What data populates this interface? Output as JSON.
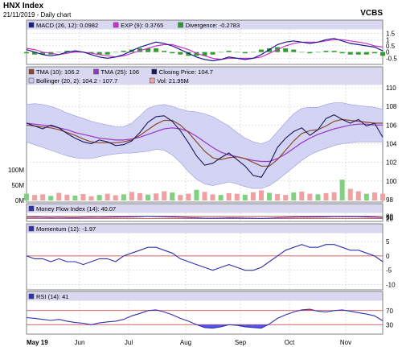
{
  "header": {
    "title": "HNX Index",
    "subtitle": "21/11/2019 - Daily chart",
    "brand": "VCBS"
  },
  "months": [
    "May 19",
    "Jun",
    "Jul",
    "Aug",
    "Sep",
    "Oct",
    "Nov"
  ],
  "colors": {
    "panel_bg": "#ffffff",
    "legend_bg": "#d8d8f0",
    "grid": "#c8c8c8",
    "axis_text": "#000000",
    "macd": "#1a1a8c",
    "exp": "#cc33cc",
    "divergence_pos": "#2e9e2e",
    "divergence_neg": "#2e9e2e",
    "tma10": "#8b4a2b",
    "tma25": "#9933cc",
    "close": "#1a1a5c",
    "bollinger_fill": "#c8c8f0",
    "bollinger_line": "#9999dd",
    "volume": "#f0a0a0",
    "volume_green": "#80d080",
    "line_blue": "#3030b0",
    "ref_line": "#cc3333",
    "overbought_fill": "#ee5555",
    "oversold_fill": "#5555ee"
  },
  "chart_data": [
    {
      "type": "line",
      "name": "MACD",
      "legend": [
        {
          "label": "MACD (26, 12): 0.0982",
          "color_key": "macd",
          "icon": "square-icon"
        },
        {
          "label": "EXP (9): 0.3765",
          "color_key": "exp",
          "icon": "square-icon"
        },
        {
          "label": "Divergence: -0.2783",
          "color_key": "divergence_pos",
          "icon": "square-icon"
        }
      ],
      "y_ticks": [
        "1.5",
        "1",
        "0.5",
        "0",
        "-0.5"
      ],
      "ylim": [
        -0.8,
        1.6
      ],
      "series": [
        {
          "name": "MACD (26, 12)",
          "values": [
            0.2,
            0.0,
            -0.2,
            -0.3,
            -0.2,
            0.0,
            0.1,
            0.0,
            -0.2,
            -0.4,
            -0.5,
            -0.4,
            -0.2,
            0.1,
            0.4,
            0.6,
            0.8,
            0.7,
            0.5,
            0.2,
            -0.1,
            -0.4,
            -0.6,
            -0.7,
            -0.6,
            -0.4,
            -0.5,
            -0.6,
            -0.5,
            -0.2,
            0.2,
            0.6,
            0.8,
            0.9,
            0.8,
            0.7,
            0.8,
            1.0,
            1.1,
            0.9,
            0.7,
            0.6,
            0.5,
            0.4,
            0.1
          ]
        },
        {
          "name": "EXP (9)",
          "values": [
            0.3,
            0.2,
            0.0,
            -0.1,
            -0.2,
            -0.1,
            0.0,
            0.0,
            -0.1,
            -0.2,
            -0.3,
            -0.4,
            -0.3,
            -0.1,
            0.1,
            0.3,
            0.5,
            0.6,
            0.6,
            0.4,
            0.2,
            -0.1,
            -0.3,
            -0.5,
            -0.6,
            -0.5,
            -0.5,
            -0.5,
            -0.5,
            -0.4,
            -0.1,
            0.2,
            0.5,
            0.7,
            0.8,
            0.8,
            0.8,
            0.9,
            1.0,
            1.0,
            0.9,
            0.8,
            0.7,
            0.5,
            0.4
          ]
        }
      ]
    },
    {
      "type": "line",
      "name": "Price",
      "legend": [
        {
          "label": "TMA (10): 106.2",
          "color_key": "tma10",
          "icon": "square-icon"
        },
        {
          "label": "TMA (25): 106",
          "color_key": "tma25",
          "icon": "square-icon"
        },
        {
          "label": "Closing Price: 104.7",
          "color_key": "close",
          "icon": "square-icon"
        },
        {
          "label": "Bollinger (20, 2): 104.2 - 107.7",
          "color_key": "bollinger_fill",
          "icon": "square-icon"
        },
        {
          "label": "Vol: 21.95M",
          "color_key": "volume",
          "icon": "square-icon"
        }
      ],
      "y_ticks": [
        "110",
        "108",
        "106",
        "104",
        "102",
        "100",
        "98"
      ],
      "ylim": [
        98,
        110
      ],
      "volume_ticks": [
        "100M",
        "50M",
        "0M"
      ],
      "series": [
        {
          "name": "Closing Price",
          "values": [
            106.2,
            105.9,
            105.6,
            106.0,
            105.7,
            105.1,
            104.6,
            104.2,
            104.0,
            104.4,
            104.2,
            103.8,
            103.9,
            104.3,
            105.2,
            106.3,
            106.9,
            107.0,
            106.4,
            105.4,
            104.1,
            102.7,
            101.7,
            101.9,
            102.5,
            103.0,
            102.3,
            101.6,
            100.6,
            100.4,
            101.8,
            103.6,
            104.6,
            105.3,
            105.7,
            104.9,
            105.5,
            106.7,
            107.1,
            106.6,
            106.2,
            106.6,
            105.9,
            106.2,
            104.7
          ]
        },
        {
          "name": "TMA (10)",
          "values": [
            106.0,
            105.9,
            105.8,
            105.7,
            105.5,
            105.2,
            104.9,
            104.5,
            104.2,
            104.1,
            104.1,
            104.1,
            104.2,
            104.4,
            104.9,
            105.5,
            106.1,
            106.5,
            106.5,
            106.0,
            105.2,
            104.2,
            103.2,
            102.5,
            102.3,
            102.5,
            102.6,
            102.4,
            102.0,
            101.6,
            101.6,
            102.3,
            103.3,
            104.3,
            105.1,
            105.4,
            105.5,
            105.9,
            106.4,
            106.6,
            106.5,
            106.4,
            106.3,
            106.2,
            106.2
          ]
        },
        {
          "name": "TMA (25)",
          "values": [
            106.2,
            106.1,
            106.0,
            105.9,
            105.7,
            105.5,
            105.2,
            105.0,
            104.8,
            104.6,
            104.5,
            104.4,
            104.4,
            104.5,
            104.7,
            105.0,
            105.3,
            105.6,
            105.7,
            105.6,
            105.3,
            104.8,
            104.2,
            103.6,
            103.1,
            102.8,
            102.6,
            102.4,
            102.2,
            102.1,
            102.1,
            102.4,
            102.9,
            103.5,
            104.1,
            104.6,
            105.0,
            105.3,
            105.6,
            105.8,
            106.0,
            106.1,
            106.1,
            106.0,
            106.0
          ]
        },
        {
          "name": "Bollinger Upper",
          "values": [
            108.2,
            108.3,
            108.2,
            108.0,
            107.7,
            107.3,
            107.0,
            106.7,
            106.4,
            106.2,
            106.0,
            105.8,
            105.8,
            106.2,
            107.0,
            107.8,
            108.1,
            108.2,
            108.0,
            107.7,
            107.5,
            107.4,
            107.2,
            106.9,
            106.4,
            105.9,
            105.2,
            104.6,
            104.2,
            104.0,
            104.3,
            105.3,
            106.3,
            107.2,
            107.8,
            107.9,
            107.9,
            108.2,
            108.4,
            108.4,
            108.2,
            108.1,
            108.0,
            107.9,
            107.7
          ]
        },
        {
          "name": "Bollinger Lower",
          "values": [
            104.2,
            103.9,
            103.6,
            103.3,
            103.0,
            102.7,
            102.5,
            102.4,
            102.4,
            102.6,
            102.8,
            102.9,
            103.0,
            103.0,
            103.1,
            103.2,
            103.4,
            103.3,
            102.8,
            102.0,
            101.0,
            100.2,
            99.7,
            99.5,
            99.7,
            99.9,
            99.7,
            99.4,
            99.2,
            99.2,
            99.5,
            100.1,
            100.8,
            101.5,
            102.2,
            102.8,
            103.2,
            103.5,
            103.8,
            104.0,
            104.1,
            104.2,
            104.2,
            104.2,
            104.2
          ]
        },
        {
          "name": "Vol",
          "values": [
            22,
            18,
            20,
            15,
            25,
            19,
            16,
            21,
            14,
            18,
            22,
            17,
            20,
            28,
            24,
            19,
            23,
            30,
            26,
            18,
            22,
            35,
            28,
            20,
            18,
            24,
            22,
            19,
            27,
            33,
            25,
            21,
            18,
            26,
            29,
            22,
            20,
            24,
            27,
            68,
            38,
            30,
            22,
            26,
            22
          ]
        }
      ]
    },
    {
      "type": "line",
      "name": "Money Flow Index",
      "legend": [
        {
          "label": "Money Flow Index (14): 40.07",
          "color_key": "line_blue",
          "icon": "square-icon"
        }
      ],
      "y_ticks": [
        "80",
        "50",
        "20"
      ],
      "ylim": [
        10,
        90
      ],
      "series": [
        {
          "name": "Money Flow Index (14)",
          "values": [
            50,
            55,
            48,
            45,
            50,
            44,
            42,
            48,
            52,
            50,
            55,
            58,
            60,
            65,
            72,
            80,
            75,
            68,
            60,
            55,
            45,
            38,
            30,
            28,
            32,
            38,
            36,
            32,
            28,
            25,
            30,
            40,
            48,
            55,
            60,
            58,
            62,
            65,
            70,
            72,
            75,
            68,
            62,
            55,
            40
          ]
        }
      ]
    },
    {
      "type": "line",
      "name": "Momentum",
      "legend": [
        {
          "label": "Momentum (12): -1.97",
          "color_key": "line_blue",
          "icon": "square-icon"
        }
      ],
      "y_ticks": [
        "5",
        "0",
        "-5",
        "-10"
      ],
      "ylim": [
        -11,
        7
      ],
      "series": [
        {
          "name": "Momentum (12)",
          "values": [
            0,
            -1,
            -1,
            -2,
            -1,
            -2,
            -2,
            -3,
            -2,
            -1,
            -1,
            -2,
            0,
            1,
            2,
            3,
            3,
            2,
            1,
            -1,
            -2,
            -3,
            -4,
            -5,
            -4,
            -3,
            -4,
            -5,
            -5,
            -4,
            -2,
            0,
            2,
            3,
            4,
            3,
            3,
            4,
            4,
            3,
            2,
            2,
            1,
            0,
            -2
          ]
        }
      ]
    },
    {
      "type": "line",
      "name": "RSI",
      "legend": [
        {
          "label": "RSI (14): 41",
          "color_key": "line_blue",
          "icon": "square-icon"
        }
      ],
      "y_ticks": [
        "70",
        "30"
      ],
      "ylim": [
        10,
        90
      ],
      "series": [
        {
          "name": "RSI (14)",
          "values": [
            50,
            48,
            45,
            42,
            45,
            40,
            36,
            34,
            30,
            35,
            38,
            40,
            45,
            55,
            62,
            70,
            72,
            66,
            58,
            48,
            40,
            30,
            22,
            20,
            24,
            30,
            28,
            24,
            22,
            20,
            32,
            48,
            58,
            66,
            72,
            74,
            68,
            66,
            70,
            72,
            68,
            64,
            60,
            55,
            41
          ]
        }
      ]
    }
  ]
}
